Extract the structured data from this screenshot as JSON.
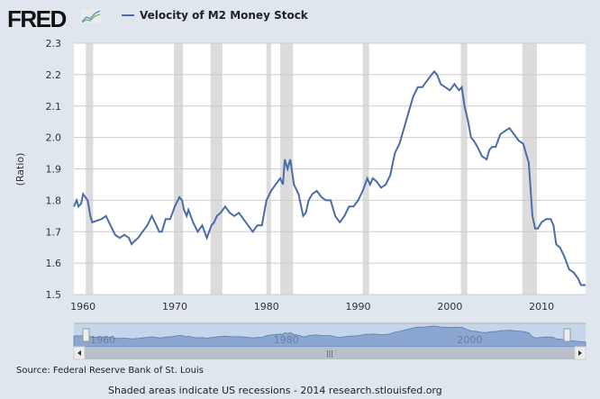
{
  "logo_text": "FRED",
  "footer": {
    "source": "Source: Federal Reserve Bank of St. Louis",
    "note": "Shaded areas indicate US recessions - 2014 research.stlouisfed.org"
  },
  "colors": {
    "series": "#4a6da7",
    "recession": "#dcdcdc",
    "navigator_fill": "#8aa6d1"
  },
  "chart_data": {
    "type": "line",
    "title": "Velocity of M2 Money Stock",
    "xlabel": "",
    "ylabel": "(Ratio)",
    "xlim": [
      1959,
      2014.8
    ],
    "ylim": [
      1.5,
      2.3
    ],
    "yticks": [
      1.5,
      1.6,
      1.7,
      1.8,
      1.9,
      2.0,
      2.1,
      2.2,
      2.3
    ],
    "ytick_labels": [
      "1.5",
      "1.6",
      "1.7",
      "1.8",
      "1.9",
      "2.0",
      "2.1",
      "2.2",
      "2.3"
    ],
    "xticks": [
      1960,
      1970,
      1980,
      1990,
      2000,
      2010
    ],
    "xtick_labels": [
      "1960",
      "1970",
      "1980",
      "1990",
      "2000",
      "2010"
    ],
    "navigator_labels": [
      "1960",
      "1980",
      "2000"
    ],
    "grid": true,
    "recessions": [
      [
        1960.3,
        1961.1
      ],
      [
        1969.9,
        1970.9
      ],
      [
        1973.9,
        1975.2
      ],
      [
        1980.0,
        1980.5
      ],
      [
        1981.5,
        1982.9
      ],
      [
        1990.5,
        1991.2
      ],
      [
        2001.2,
        2001.9
      ],
      [
        2007.9,
        2009.5
      ]
    ],
    "series": [
      {
        "name": "Velocity of M2 Money Stock",
        "x": [
          1959,
          1959.3,
          1959.5,
          1959.8,
          1960,
          1960.5,
          1960.8,
          1961,
          1962,
          1962.5,
          1963,
          1963.5,
          1964,
          1964.5,
          1965,
          1965.3,
          1965.6,
          1966,
          1966.5,
          1967,
          1967.5,
          1968,
          1968.3,
          1968.6,
          1969,
          1969.5,
          1970,
          1970.5,
          1970.8,
          1971,
          1971.3,
          1971.5,
          1972,
          1972.5,
          1973,
          1973.5,
          1974,
          1974.3,
          1974.6,
          1975,
          1975.5,
          1976,
          1976.5,
          1977,
          1977.5,
          1978,
          1978.5,
          1979,
          1979.5,
          1980,
          1980.5,
          1981,
          1981.5,
          1981.8,
          1982,
          1982.3,
          1982.6,
          1983,
          1983.5,
          1984,
          1984.3,
          1984.6,
          1985,
          1985.5,
          1986,
          1986.5,
          1987,
          1987.5,
          1988,
          1988.5,
          1989,
          1989.5,
          1990,
          1990.5,
          1991,
          1991.3,
          1991.6,
          1992,
          1992.5,
          1993,
          1993.5,
          1994,
          1994.5,
          1995,
          1995.5,
          1996,
          1996.5,
          1997,
          1997.5,
          1998,
          1998.3,
          1998.6,
          1999,
          1999.5,
          2000,
          2000.5,
          2001,
          2001.3,
          2001.6,
          2002,
          2002.3,
          2002.6,
          2003,
          2003.5,
          2004,
          2004.3,
          2004.6,
          2005,
          2005.5,
          2006,
          2006.5,
          2007,
          2007.5,
          2008,
          2008.3,
          2008.6,
          2009,
          2009.3,
          2009.6,
          2010,
          2010.5,
          2011,
          2011.3,
          2011.6,
          2012,
          2012.5,
          2013,
          2013.5,
          2014,
          2014.3,
          2014.8
        ],
        "values": [
          1.78,
          1.8,
          1.78,
          1.79,
          1.82,
          1.8,
          1.75,
          1.73,
          1.74,
          1.75,
          1.72,
          1.69,
          1.68,
          1.69,
          1.68,
          1.66,
          1.67,
          1.68,
          1.7,
          1.72,
          1.75,
          1.72,
          1.7,
          1.7,
          1.74,
          1.74,
          1.78,
          1.81,
          1.8,
          1.77,
          1.75,
          1.77,
          1.73,
          1.7,
          1.72,
          1.68,
          1.72,
          1.73,
          1.75,
          1.76,
          1.78,
          1.76,
          1.75,
          1.76,
          1.74,
          1.72,
          1.7,
          1.72,
          1.72,
          1.8,
          1.83,
          1.85,
          1.87,
          1.85,
          1.93,
          1.9,
          1.93,
          1.85,
          1.82,
          1.75,
          1.76,
          1.8,
          1.82,
          1.83,
          1.81,
          1.8,
          1.8,
          1.75,
          1.73,
          1.75,
          1.78,
          1.78,
          1.8,
          1.83,
          1.87,
          1.85,
          1.87,
          1.86,
          1.84,
          1.85,
          1.88,
          1.95,
          1.98,
          2.03,
          2.08,
          2.13,
          2.16,
          2.16,
          2.18,
          2.2,
          2.21,
          2.2,
          2.17,
          2.16,
          2.15,
          2.17,
          2.15,
          2.16,
          2.1,
          2.05,
          2.0,
          1.99,
          1.97,
          1.94,
          1.93,
          1.96,
          1.97,
          1.97,
          2.01,
          2.02,
          2.03,
          2.01,
          1.99,
          1.98,
          1.95,
          1.92,
          1.75,
          1.71,
          1.71,
          1.73,
          1.74,
          1.74,
          1.72,
          1.66,
          1.65,
          1.62,
          1.58,
          1.57,
          1.55,
          1.53,
          1.53
        ]
      }
    ]
  }
}
